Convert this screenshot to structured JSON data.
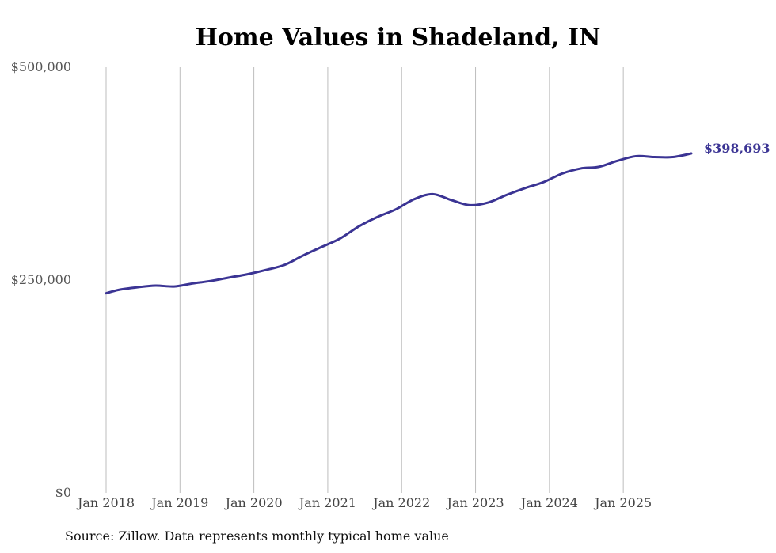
{
  "chart_data": {
    "type": "line",
    "title": "Home Values in Shadeland, IN",
    "xlabel": "",
    "ylabel": "",
    "ylim": [
      0,
      500000
    ],
    "y_ticks": [
      {
        "value": 0,
        "label": "$0"
      },
      {
        "value": 250000,
        "label": "$250,000"
      },
      {
        "value": 500000,
        "label": "$500,000"
      }
    ],
    "x_ticks": [
      {
        "value": 2018.0,
        "label": "Jan 2018"
      },
      {
        "value": 2019.0,
        "label": "Jan 2019"
      },
      {
        "value": 2020.0,
        "label": "Jan 2020"
      },
      {
        "value": 2021.0,
        "label": "Jan 2021"
      },
      {
        "value": 2022.0,
        "label": "Jan 2022"
      },
      {
        "value": 2023.0,
        "label": "Jan 2023"
      },
      {
        "value": 2024.0,
        "label": "Jan 2024"
      },
      {
        "value": 2025.0,
        "label": "Jan 2025"
      }
    ],
    "xlim": [
      2018.0,
      2025.92
    ],
    "grid": "vertical",
    "series": [
      {
        "name": "Typical home value",
        "color": "#3b3494",
        "end_label": "$398,693",
        "points": [
          [
            2018.0,
            234500
          ],
          [
            2018.17,
            238500
          ],
          [
            2018.42,
            241500
          ],
          [
            2018.67,
            243500
          ],
          [
            2018.92,
            242500
          ],
          [
            2019.17,
            246000
          ],
          [
            2019.42,
            249000
          ],
          [
            2019.67,
            253000
          ],
          [
            2019.92,
            257000
          ],
          [
            2020.17,
            262000
          ],
          [
            2020.42,
            268000
          ],
          [
            2020.67,
            279000
          ],
          [
            2020.92,
            289000
          ],
          [
            2021.17,
            299000
          ],
          [
            2021.42,
            313000
          ],
          [
            2021.67,
            324000
          ],
          [
            2021.92,
            333000
          ],
          [
            2022.17,
            345000
          ],
          [
            2022.42,
            351000
          ],
          [
            2022.67,
            344000
          ],
          [
            2022.92,
            338000
          ],
          [
            2023.17,
            341000
          ],
          [
            2023.42,
            350000
          ],
          [
            2023.67,
            358000
          ],
          [
            2023.92,
            365000
          ],
          [
            2024.17,
            375000
          ],
          [
            2024.42,
            381000
          ],
          [
            2024.67,
            383000
          ],
          [
            2024.92,
            390000
          ],
          [
            2025.17,
            395500
          ],
          [
            2025.42,
            394500
          ],
          [
            2025.67,
            394500
          ],
          [
            2025.92,
            398693
          ]
        ]
      }
    ]
  },
  "source": "Source: Zillow. Data represents monthly typical home value"
}
